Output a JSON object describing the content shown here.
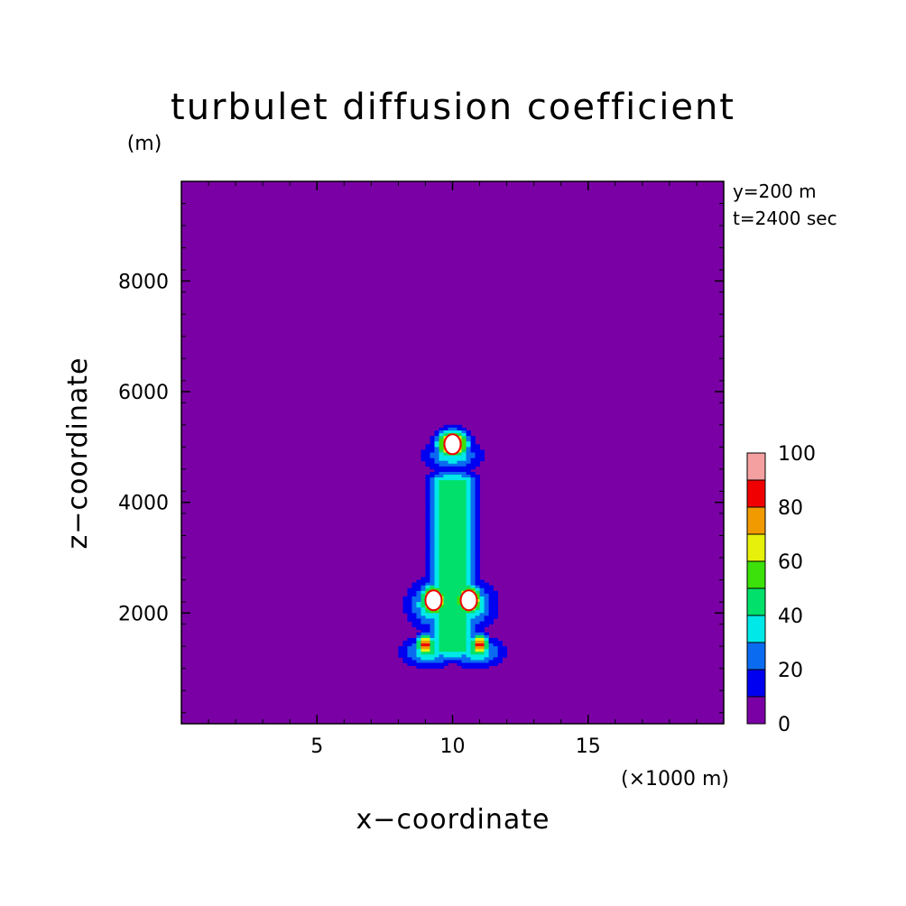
{
  "chart_data": {
    "type": "contour",
    "title": "turbulet diffusion coefficient",
    "xlabel": "x−coordinate",
    "ylabel": "z−coordinate",
    "x_unit": "(×1000 m)",
    "y_unit": "(m)",
    "annotations": [
      "y=200 m",
      "t=2400 sec"
    ],
    "xlim": [
      0,
      20
    ],
    "ylim": [
      0,
      9800
    ],
    "x_ticks": [
      5,
      10,
      15
    ],
    "y_ticks": [
      2000,
      4000,
      6000,
      8000
    ],
    "x_tick_labels": [
      "5",
      "10",
      "15"
    ],
    "y_tick_labels": [
      "2000",
      "4000",
      "6000",
      "8000"
    ],
    "grid": false,
    "colorbar": {
      "levels": [
        0,
        10,
        20,
        30,
        40,
        50,
        60,
        70,
        80,
        90,
        100
      ],
      "labels": [
        "0",
        "20",
        "40",
        "60",
        "80",
        "100"
      ],
      "label_values": [
        0,
        20,
        40,
        60,
        80,
        100
      ],
      "colors": [
        "#7a00a5",
        "#0000f0",
        "#0a6bf0",
        "#00e8e8",
        "#00e06a",
        "#3ce00a",
        "#e6f00a",
        "#f09a00",
        "#f00000",
        "#f5a0a0"
      ]
    },
    "background_value": 5,
    "structure": [
      {
        "name": "plume-column",
        "x_center": 10.0,
        "z_bottom": 1100,
        "z_top": 4600,
        "value_peak": 45
      },
      {
        "name": "upper-cap",
        "x_center": 10.0,
        "z_center": 5000,
        "value_peak": 100
      },
      {
        "name": "left-lobe",
        "x_center": 9.3,
        "z_center": 2200,
        "value_peak": 100
      },
      {
        "name": "right-lobe",
        "x_center": 10.6,
        "z_center": 2200,
        "value_peak": 100
      },
      {
        "name": "left-foot",
        "x_center": 9.0,
        "z_center": 1400,
        "value_peak": 85
      },
      {
        "name": "right-foot",
        "x_center": 11.0,
        "z_center": 1400,
        "value_peak": 85
      }
    ]
  }
}
